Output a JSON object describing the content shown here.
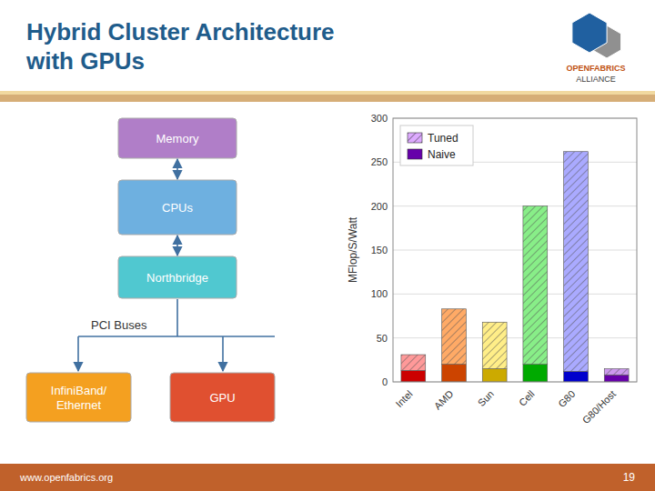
{
  "chart_data": {
    "type": "bar",
    "title": "Hybrid Cluster Architecture\nwith GPUs",
    "ylabel": "MFlop/S/Watt",
    "categories": [
      "Intel",
      "AMD",
      "Sun",
      "Cell",
      "G80",
      "G80/Host"
    ],
    "series": [
      {
        "name": "Naive",
        "color": "#6600AA",
        "colors": [
          "#CC0000",
          "#CC4400",
          "#CCAA00",
          "#00AA00",
          "#0000CC",
          "#6600AA"
        ],
        "values": [
          13,
          20,
          15,
          20,
          12,
          8
        ]
      },
      {
        "name": "Tuned",
        "color": "#DDAAFF",
        "colors": [
          "#FF9999",
          "#FFAA66",
          "#FFEE88",
          "#88EE88",
          "#AAAAFF",
          "#CC99EE"
        ],
        "values": [
          18,
          63,
          53,
          180,
          250,
          7
        ]
      }
    ],
    "stacked": true,
    "ylim": [
      0,
      300
    ],
    "yticks": [
      0,
      50,
      100,
      150,
      200,
      250,
      300
    ],
    "grid": true,
    "legend": "upper left",
    "annotations": [
      "Memory",
      "CPUs",
      "Northbridge",
      "InfiniBand/\nEthernet",
      "GPU",
      "PCI Buses",
      "OPENFABRICS",
      "ALLIANCE",
      "www.openfabrics.org",
      "19"
    ]
  }
}
